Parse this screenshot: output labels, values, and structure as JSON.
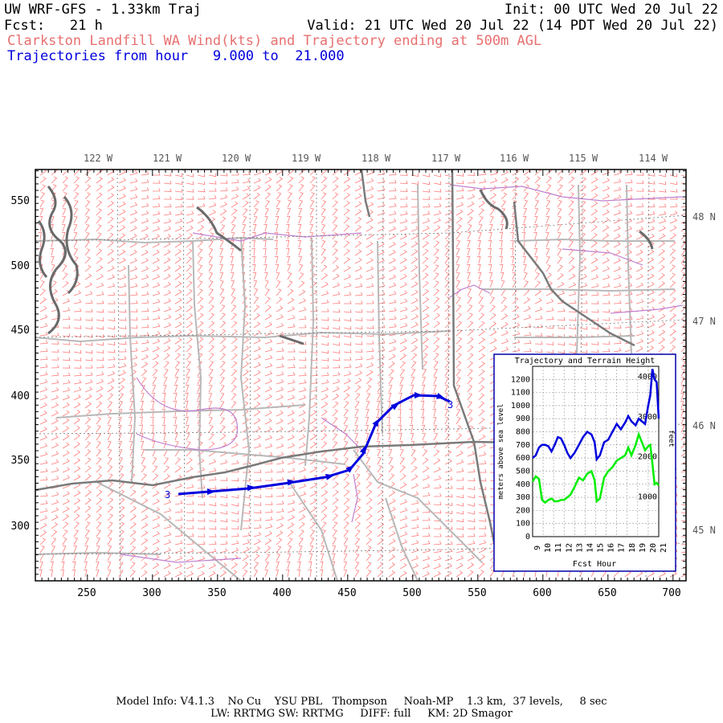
{
  "header": {
    "model_title": "UW WRF-GFS - 1.33km Traj",
    "init_time": "Init: 00 UTC Wed 20 Jul 22",
    "forecast": "Fcst:   21 h",
    "valid_time": "Valid: 21 UTC Wed 20 Jul 22 (14 PDT Wed 20 Jul 22)",
    "product": "Clarkston Landfill WA Wind(kts) and Trajectory ending at 500m AGL",
    "trajectory_range": "Trajectories from hour   9.000 to  21.000"
  },
  "map": {
    "top_lon_labels": [
      "122 W",
      "121 W",
      "120 W",
      "119 W",
      "118 W",
      "117 W",
      "116 W",
      "115 W",
      "114 W"
    ],
    "right_lat_labels": [
      "48 N",
      "47 N",
      "46 N",
      "45 N"
    ],
    "left_y_ticks": [
      "550",
      "500",
      "450",
      "400",
      "350",
      "300"
    ],
    "bottom_x_ticks": [
      "250",
      "300",
      "350",
      "400",
      "450",
      "500",
      "550",
      "600",
      "650",
      "700"
    ],
    "trajectory_start_label": "3",
    "trajectory_end_label": "3",
    "colors": {
      "wind_barbs": "#ff7a7a",
      "trajectory": "#0000dd",
      "county_lines": "#b8b8b8",
      "state_lines": "#7a7a7a",
      "water": "#c080d0"
    }
  },
  "inset": {
    "title": "Trajectory and Terrain Height",
    "ylabel_left": "meters above sea level",
    "ylabel_right": "feet",
    "xlabel": "Fcst Hour",
    "left_ticks": [
      "0",
      "100",
      "200",
      "300",
      "400",
      "500",
      "600",
      "700",
      "800",
      "900",
      "1000",
      "1100",
      "1200"
    ],
    "right_ticks": [
      "1000",
      "2000",
      "3000",
      "4000"
    ],
    "x_ticks": [
      "9",
      "10",
      "11",
      "12",
      "13",
      "14",
      "15",
      "16",
      "17",
      "18",
      "19",
      "20",
      "21"
    ]
  },
  "chart_data": {
    "type": "line",
    "title": "Trajectory and Terrain Height",
    "xlabel": "Fcst Hour",
    "ylabel": "meters above sea level",
    "y2label": "feet",
    "xlim": [
      9,
      21
    ],
    "ylim": [
      0,
      1300
    ],
    "grid": true,
    "series": [
      {
        "color": "#0000dd",
        "x": [
          9,
          9.3,
          9.6,
          9.9,
          10.2,
          10.5,
          10.8,
          11.1,
          11.4,
          11.7,
          12,
          12.3,
          12.6,
          13,
          13.4,
          13.8,
          14.2,
          14.6,
          14.9,
          15.1,
          15.4,
          15.8,
          16.2,
          16.6,
          17,
          17.4,
          17.8,
          18.1,
          18.4,
          18.8,
          19.1,
          19.4,
          19.7,
          20,
          20.2,
          20.4,
          20.6,
          20.8,
          21
        ],
        "values": [
          600,
          620,
          680,
          700,
          700,
          690,
          650,
          700,
          760,
          750,
          700,
          640,
          600,
          640,
          700,
          760,
          800,
          780,
          720,
          590,
          620,
          720,
          740,
          800,
          860,
          820,
          870,
          920,
          880,
          850,
          900,
          880,
          860,
          1000,
          1080,
          1280,
          1200,
          1180,
          900
        ]
      },
      {
        "color": "#00ee00",
        "x": [
          9,
          9.3,
          9.6,
          9.9,
          10.2,
          10.5,
          10.8,
          11.1,
          11.4,
          11.7,
          12,
          12.3,
          12.6,
          13,
          13.4,
          13.8,
          14.2,
          14.6,
          14.9,
          15.1,
          15.4,
          15.8,
          16.2,
          16.6,
          17,
          17.4,
          17.8,
          18.1,
          18.4,
          18.8,
          19.1,
          19.4,
          19.7,
          20,
          20.2,
          20.4,
          20.6,
          20.8,
          21
        ],
        "values": [
          420,
          460,
          440,
          280,
          260,
          280,
          290,
          270,
          270,
          280,
          280,
          300,
          320,
          380,
          450,
          430,
          480,
          500,
          430,
          270,
          290,
          450,
          500,
          530,
          580,
          600,
          620,
          680,
          620,
          700,
          780,
          720,
          660,
          690,
          700,
          560,
          400,
          410,
          390
        ]
      }
    ]
  },
  "footer": {
    "line1": "Model Info: V4.1.3    No Cu    YSU PBL   Thompson     Noah-MP    1.3 km,  37 levels,     8 sec",
    "line2": "LW: RRTMG SW: RRTMG     DIFF: full     KM: 2D Smagor"
  }
}
